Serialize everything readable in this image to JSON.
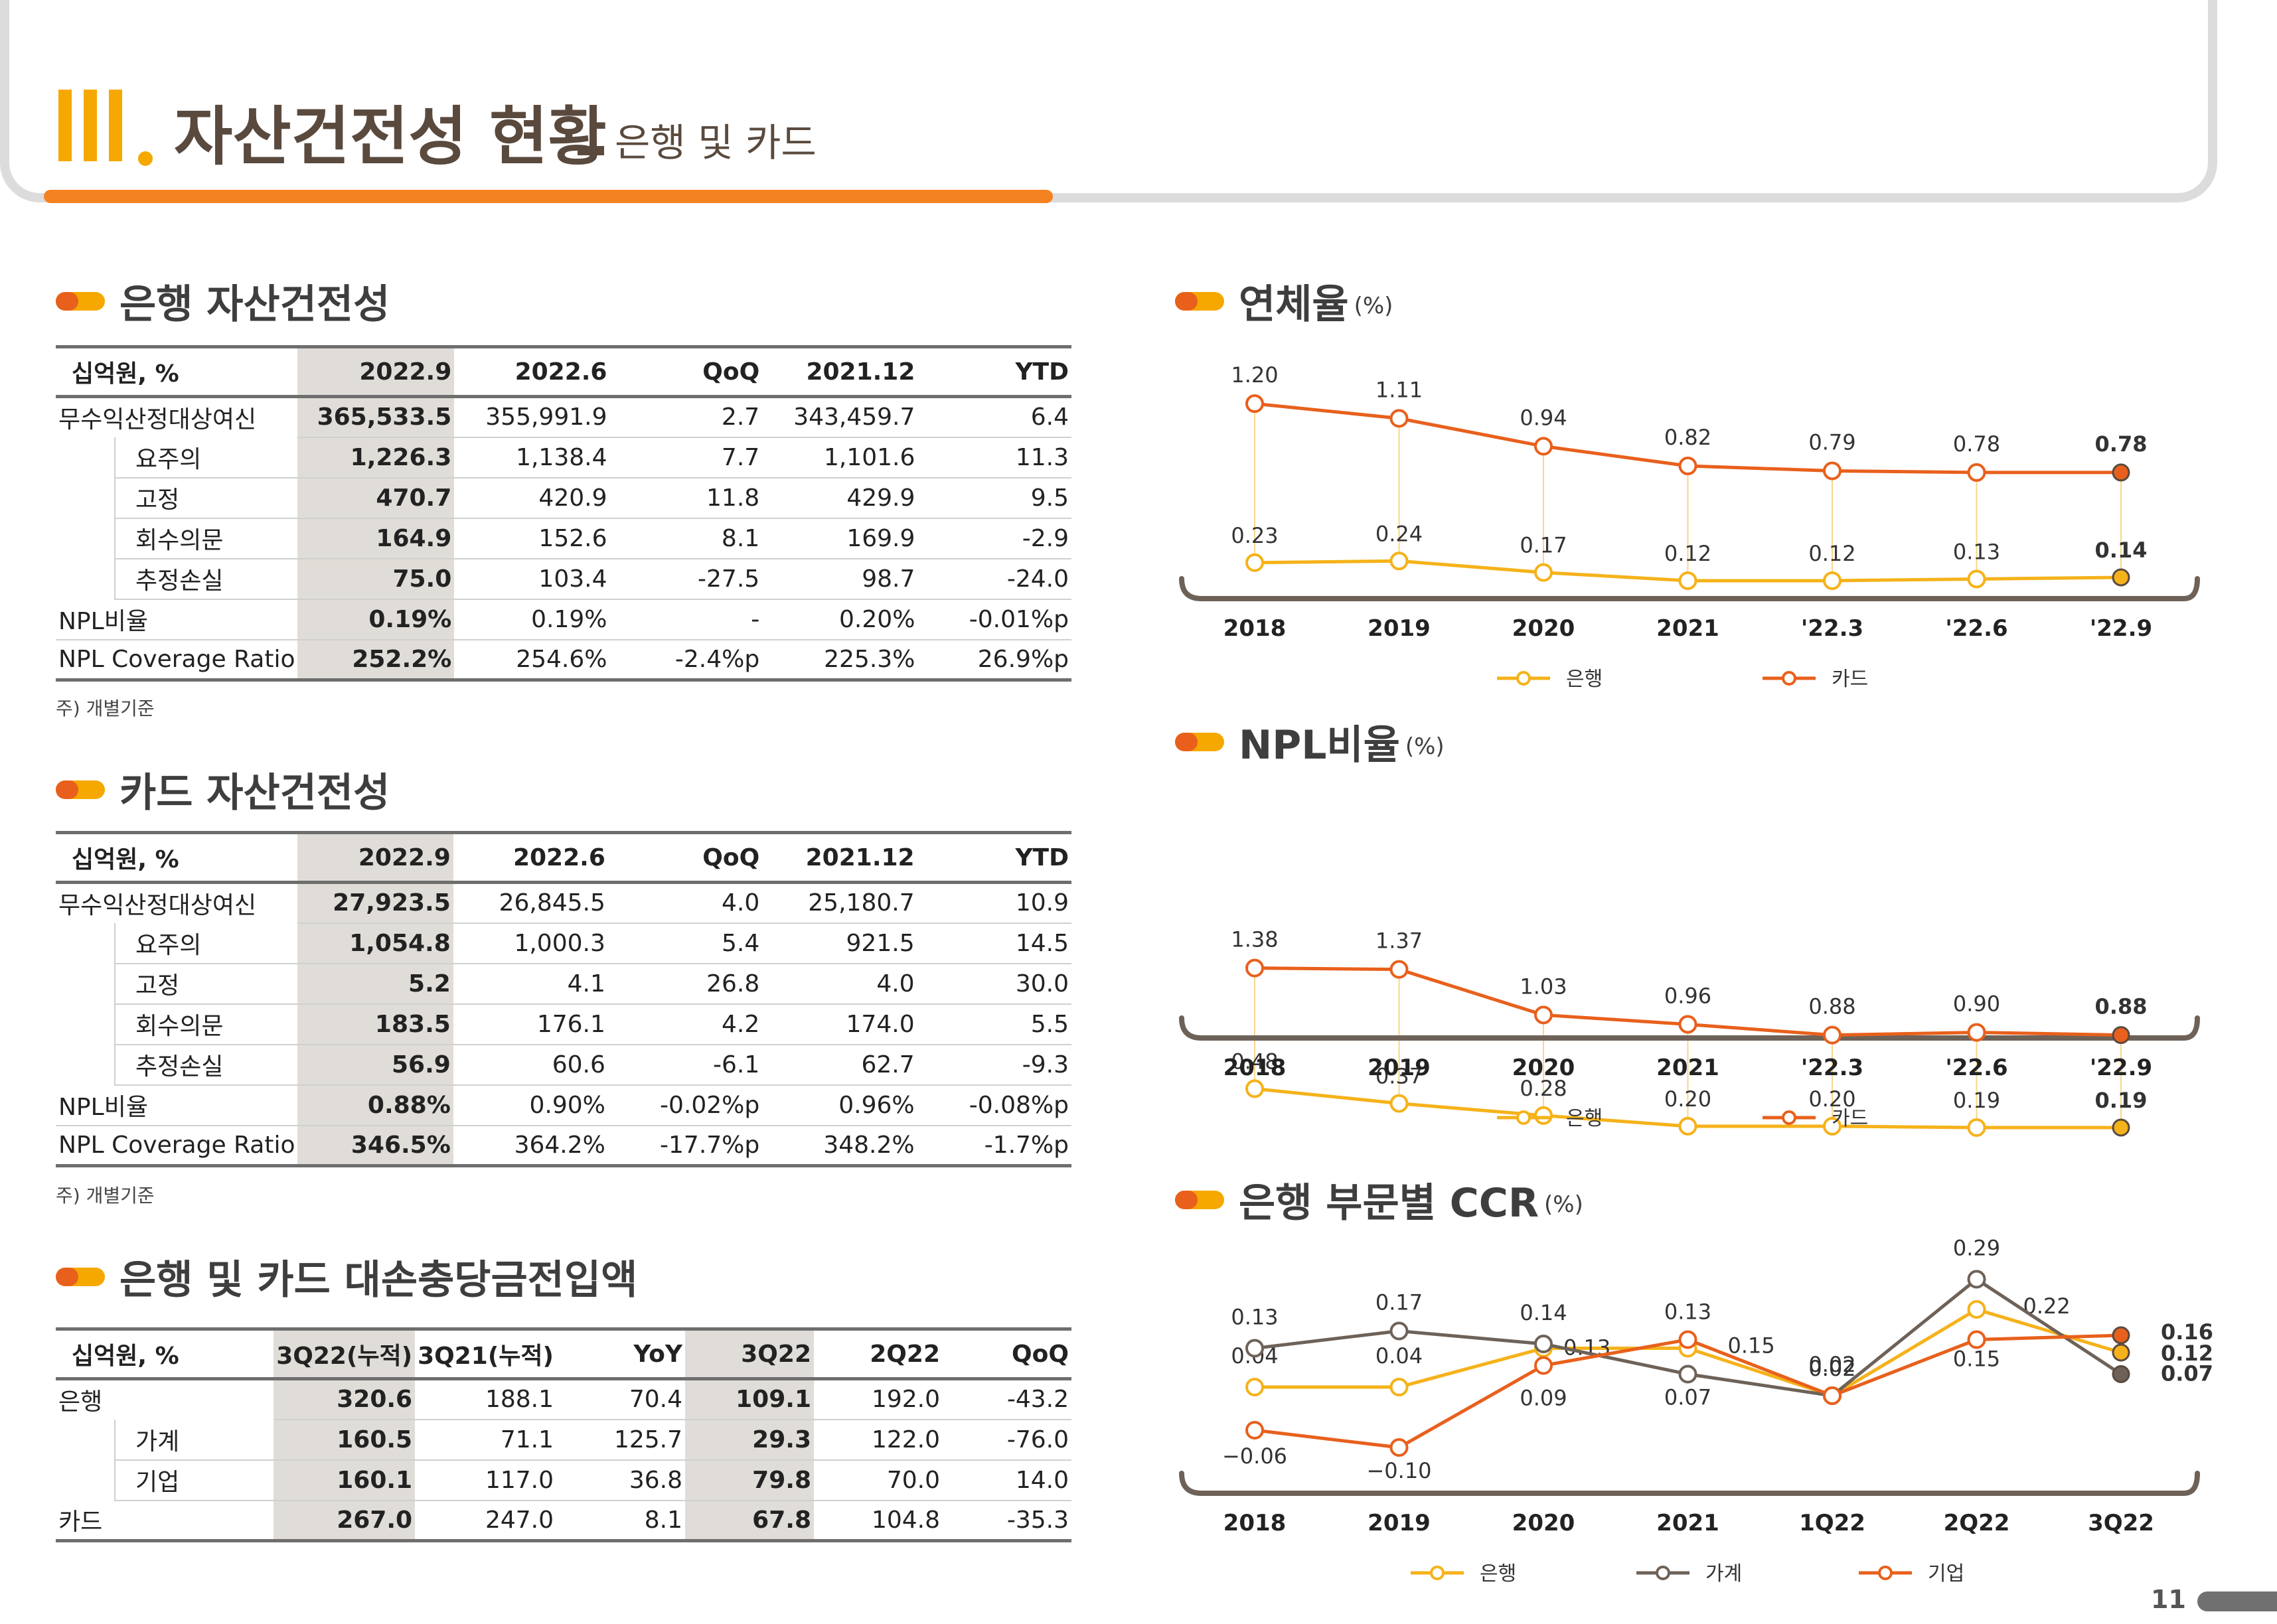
{
  "header": {
    "roman": "III",
    "title": "자산건전성 현황",
    "dash": "_",
    "subtitle": "은행 및 카드"
  },
  "colors": {
    "bank": "#f5b21a",
    "card": "#e8601c",
    "household": "#6e6258",
    "accent": "#f58220"
  },
  "bank_table": {
    "title": "은행 자산건전성",
    "headers": [
      "십억원, %",
      "2022.9",
      "2022.6",
      "QoQ",
      "2021.12",
      "YTD"
    ],
    "rows": [
      {
        "label": "무수익산정대상여신",
        "sub": false,
        "cells": [
          "365,533.5",
          "355,991.9",
          "2.7",
          "343,459.7",
          "6.4"
        ]
      },
      {
        "label": "요주의",
        "sub": true,
        "cells": [
          "1,226.3",
          "1,138.4",
          "7.7",
          "1,101.6",
          "11.3"
        ]
      },
      {
        "label": "고정",
        "sub": true,
        "cells": [
          "470.7",
          "420.9",
          "11.8",
          "429.9",
          "9.5"
        ]
      },
      {
        "label": "회수의문",
        "sub": true,
        "cells": [
          "164.9",
          "152.6",
          "8.1",
          "169.9",
          "-2.9"
        ]
      },
      {
        "label": "추정손실",
        "sub": true,
        "cells": [
          "75.0",
          "103.4",
          "-27.5",
          "98.7",
          "-24.0"
        ]
      },
      {
        "label": "NPL비율",
        "sub": false,
        "cells": [
          "0.19%",
          "0.19%",
          "-",
          "0.20%",
          "-0.01%p"
        ]
      },
      {
        "label": "NPL Coverage Ratio",
        "sub": false,
        "cells": [
          "252.2%",
          "254.6%",
          "-2.4%p",
          "225.3%",
          "26.9%p"
        ]
      }
    ],
    "note": "주) 개별기준"
  },
  "card_table": {
    "title": "카드 자산건전성",
    "headers": [
      "십억원, %",
      "2022.9",
      "2022.6",
      "QoQ",
      "2021.12",
      "YTD"
    ],
    "rows": [
      {
        "label": "무수익산정대상여신",
        "sub": false,
        "cells": [
          "27,923.5",
          "26,845.5",
          "4.0",
          "25,180.7",
          "10.9"
        ]
      },
      {
        "label": "요주의",
        "sub": true,
        "cells": [
          "1,054.8",
          "1,000.3",
          "5.4",
          "921.5",
          "14.5"
        ]
      },
      {
        "label": "고정",
        "sub": true,
        "cells": [
          "5.2",
          "4.1",
          "26.8",
          "4.0",
          "30.0"
        ]
      },
      {
        "label": "회수의문",
        "sub": true,
        "cells": [
          "183.5",
          "176.1",
          "4.2",
          "174.0",
          "5.5"
        ]
      },
      {
        "label": "추정손실",
        "sub": true,
        "cells": [
          "56.9",
          "60.6",
          "-6.1",
          "62.7",
          "-9.3"
        ]
      },
      {
        "label": "NPL비율",
        "sub": false,
        "cells": [
          "0.88%",
          "0.90%",
          "-0.02%p",
          "0.96%",
          "-0.08%p"
        ]
      },
      {
        "label": "NPL Coverage Ratio",
        "sub": false,
        "cells": [
          "346.5%",
          "364.2%",
          "-17.7%p",
          "348.2%",
          "-1.7%p"
        ]
      }
    ],
    "note": "주) 개별기준"
  },
  "provision_table": {
    "title": "은행 및 카드 대손충당금전입액",
    "headers": [
      "십억원, %",
      "3Q22(누적)",
      "3Q21(누적)",
      "YoY",
      "3Q22",
      "2Q22",
      "QoQ"
    ],
    "rows": [
      {
        "label": "은행",
        "sub": false,
        "cells": [
          "320.6",
          "188.1",
          "70.4",
          "109.1",
          "192.0",
          "-43.2"
        ]
      },
      {
        "label": "가계",
        "sub": true,
        "cells": [
          "160.5",
          "71.1",
          "125.7",
          "29.3",
          "122.0",
          "-76.0"
        ]
      },
      {
        "label": "기업",
        "sub": true,
        "cells": [
          "160.1",
          "117.0",
          "36.8",
          "79.8",
          "70.0",
          "14.0"
        ]
      },
      {
        "label": "카드",
        "sub": false,
        "cells": [
          "267.0",
          "247.0",
          "8.1",
          "67.8",
          "104.8",
          "-35.3"
        ]
      }
    ]
  },
  "chart_data": [
    {
      "type": "line",
      "title": "연체율",
      "unit": "(%)",
      "categories": [
        "2018",
        "2019",
        "2020",
        "2021",
        "'22.3",
        "'22.6",
        "'22.9"
      ],
      "series": [
        {
          "name": "은행",
          "values": [
            0.23,
            0.24,
            0.17,
            0.12,
            0.12,
            0.13,
            0.14
          ]
        },
        {
          "name": "카드",
          "values": [
            1.2,
            1.11,
            0.94,
            0.82,
            0.79,
            0.78,
            0.78
          ]
        }
      ],
      "legend": "bottom",
      "grid": false
    },
    {
      "type": "line",
      "title": "NPL비율",
      "unit": "(%)",
      "categories": [
        "2018",
        "2019",
        "2020",
        "2021",
        "'22.3",
        "'22.6",
        "'22.9"
      ],
      "series": [
        {
          "name": "은행",
          "values": [
            0.48,
            0.37,
            0.28,
            0.2,
            0.2,
            0.19,
            0.19
          ]
        },
        {
          "name": "카드",
          "values": [
            1.38,
            1.37,
            1.03,
            0.96,
            0.88,
            0.9,
            0.88
          ]
        }
      ],
      "legend": "bottom",
      "grid": false
    },
    {
      "type": "line",
      "title": "은행 부문별 CCR",
      "unit": "(%)",
      "categories": [
        "2018",
        "2019",
        "2020",
        "2021",
        "1Q22",
        "2Q22",
        "3Q22"
      ],
      "series": [
        {
          "name": "은행",
          "values": [
            0.04,
            0.04,
            0.13,
            0.13,
            0.02,
            0.22,
            0.12
          ]
        },
        {
          "name": "가계",
          "values": [
            0.13,
            0.17,
            0.14,
            0.07,
            0.02,
            0.29,
            0.07
          ]
        },
        {
          "name": "기업",
          "values": [
            -0.06,
            -0.1,
            0.09,
            0.15,
            0.02,
            0.15,
            0.16
          ]
        }
      ],
      "legend": "bottom",
      "grid": false
    }
  ],
  "page_number": "11"
}
